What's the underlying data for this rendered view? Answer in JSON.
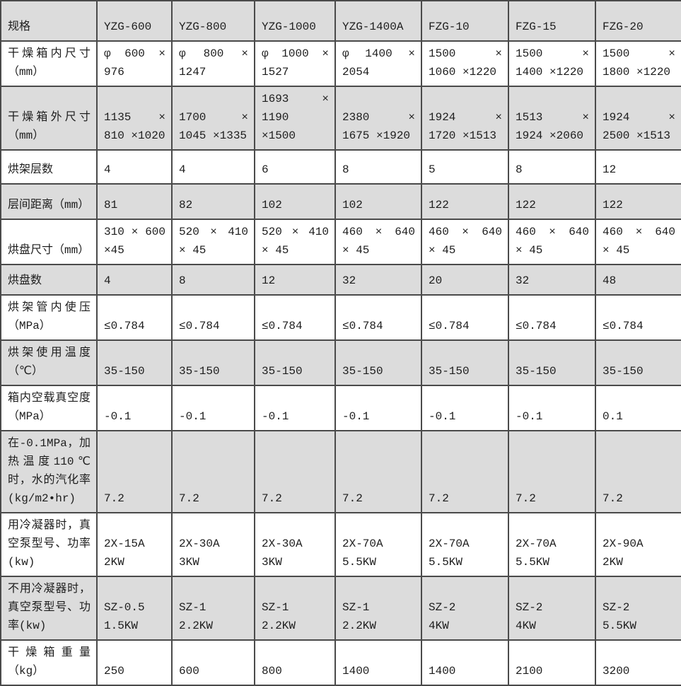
{
  "table": {
    "columns": [
      "规格",
      "YZG-600",
      "YZG-800",
      "YZG-1000",
      "YZG-1400A",
      "FZG-10",
      "FZG-15",
      "FZG-20"
    ],
    "rows": [
      {
        "label": "干燥箱内尺寸（mm）",
        "values": [
          "φ 600 × 976",
          "φ 800 × 1247",
          "φ 1000 × 1527",
          "φ 1400 × 2054",
          "1500 × 1060 ×1220",
          "1500 × 1400 ×1220",
          "1500 × 1800 ×1220"
        ]
      },
      {
        "label": "干燥箱外尺寸（mm）",
        "values": [
          "1135 × 810 ×1020",
          "1700 × 1045 ×1335",
          "1693 × 1190 ×1500",
          "2380 × 1675 ×1920",
          "1924 × 1720 ×1513",
          "1513 × 1924 ×2060",
          "1924 × 2500 ×1513"
        ]
      },
      {
        "label": "烘架层数",
        "values": [
          "4",
          "4",
          "6",
          "8",
          "5",
          "8",
          "12"
        ]
      },
      {
        "label": "层间距离（mm）",
        "values": [
          "81",
          "82",
          "102",
          "102",
          "122",
          "122",
          "122"
        ]
      },
      {
        "label": "烘盘尺寸（mm）",
        "values": [
          "310 × 600 ×45",
          "520 × 410 × 45",
          "520 × 410 × 45",
          "460 × 640 × 45",
          "460 × 640 × 45",
          "460 × 640 × 45",
          "460 × 640 × 45"
        ]
      },
      {
        "label": "烘盘数",
        "values": [
          "4",
          "8",
          "12",
          "32",
          "20",
          "32",
          "48"
        ]
      },
      {
        "label": "烘架管内使压（MPa）",
        "values": [
          "≤0.784",
          "≤0.784",
          "≤0.784",
          "≤0.784",
          "≤0.784",
          "≤0.784",
          "≤0.784"
        ]
      },
      {
        "label": "烘架使用温度（℃）",
        "values": [
          "35-150",
          "35-150",
          "35-150",
          "35-150",
          "35-150",
          "35-150",
          "35-150"
        ]
      },
      {
        "label": "箱内空载真空度（MPa）",
        "values": [
          "-0.1",
          "-0.1",
          "-0.1",
          "-0.1",
          "-0.1",
          "-0.1",
          "0.1"
        ]
      },
      {
        "label": "在-0.1MPa，加热温度110℃时，水的汽化率(kg/m2•hr)",
        "values": [
          "7.2",
          "7.2",
          "7.2",
          "7.2",
          "7.2",
          "7.2",
          "7.2"
        ]
      },
      {
        "label": "用冷凝器时，真空泵型号、功率(kw)",
        "values": [
          "2X-15A\n2KW",
          "2X-30A\n3KW",
          "2X-30A\n3KW",
          "2X-70A\n5.5KW",
          "2X-70A\n5.5KW",
          "2X-70A\n5.5KW",
          "2X-90A\n2KW"
        ]
      },
      {
        "label": "不用冷凝器时，真空泵型号、功率(kw)",
        "values": [
          "SZ-0.5\n1.5KW",
          "SZ-1\n2.2KW",
          "SZ-1\n2.2KW",
          "SZ-1\n2.2KW",
          "SZ-2\n4KW",
          "SZ-2\n4KW",
          "SZ-2\n5.5KW"
        ]
      },
      {
        "label": "干燥箱重量（kg）",
        "values": [
          "250",
          "600",
          "800",
          "1400",
          "1400",
          "2100",
          "3200"
        ]
      }
    ],
    "colors": {
      "shaded_row_bg": "#dcdcdc",
      "plain_row_bg": "#ffffff",
      "border": "#4a4a4a",
      "text": "#1d1d1d"
    }
  }
}
